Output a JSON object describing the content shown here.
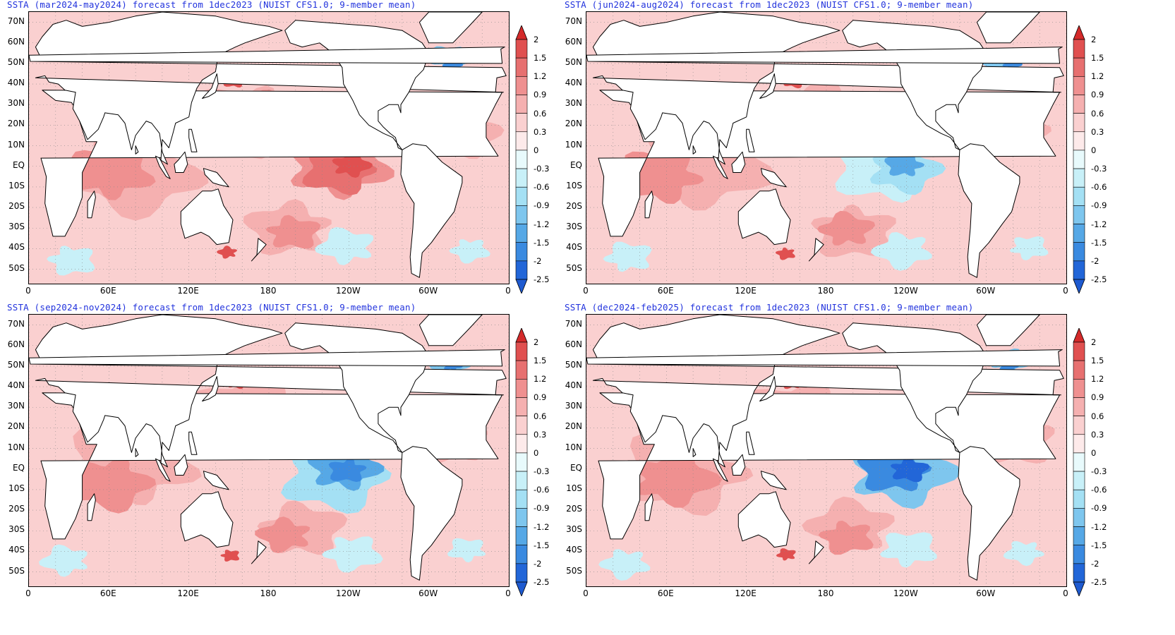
{
  "panels": [
    {
      "title": "SSTA (mar2024-may2024) forecast from 1dec2023 (NUIST CFS1.0; 9-member mean)",
      "pattern": "warm"
    },
    {
      "title": "SSTA (jun2024-aug2024) forecast from 1dec2023 (NUIST CFS1.0; 9-member mean)",
      "pattern": "neutral"
    },
    {
      "title": "SSTA (sep2024-nov2024) forecast from 1dec2023 (NUIST CFS1.0; 9-member mean)",
      "pattern": "cool"
    },
    {
      "title": "SSTA (dec2024-feb2025) forecast from 1dec2023 (NUIST CFS1.0; 9-member mean)",
      "pattern": "cooler"
    }
  ],
  "lat_labels": [
    "70N",
    "60N",
    "50N",
    "40N",
    "30N",
    "20N",
    "10N",
    "EQ",
    "10S",
    "20S",
    "30S",
    "40S",
    "50S"
  ],
  "lon_labels": [
    "0",
    "60E",
    "120E",
    "180",
    "120W",
    "60W",
    "0"
  ],
  "colorbar": {
    "labels": [
      "2",
      "1.5",
      "1.2",
      "0.9",
      "0.6",
      "0.3",
      "0",
      "-0.3",
      "-0.6",
      "-0.9",
      "-1.2",
      "-1.5",
      "-2",
      "-2.5"
    ],
    "colors": [
      "#d42a2a",
      "#e05050",
      "#e77070",
      "#ef9090",
      "#f5b0b0",
      "#fad0d0",
      "#fdeaea",
      "#e8fafc",
      "#c8f0f8",
      "#a4e0f4",
      "#7ec6ee",
      "#56a8e6",
      "#3a8ae0",
      "#2266d8",
      "#1e5ad0"
    ],
    "warm_scale": [
      "#fdeaea",
      "#fad0d0",
      "#f5b0b0",
      "#ef9090",
      "#e77070",
      "#e05050",
      "#d42a2a"
    ],
    "cool_scale": [
      "#e8fafc",
      "#c8f0f8",
      "#a4e0f4",
      "#7ec6ee",
      "#56a8e6",
      "#3a8ae0",
      "#2266d8"
    ]
  }
}
